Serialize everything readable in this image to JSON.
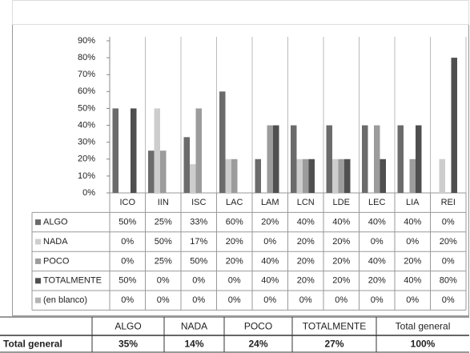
{
  "chart_data": {
    "type": "bar",
    "categories": [
      "ICO",
      "IIN",
      "ISC",
      "LAC",
      "LAM",
      "LCN",
      "LDE",
      "LEC",
      "LIA",
      "REI"
    ],
    "series": [
      {
        "name": "ALGO",
        "color": "#6b6b6b",
        "values": [
          50,
          25,
          33,
          60,
          20,
          40,
          40,
          40,
          40,
          0
        ],
        "value_labels": [
          "50%",
          "25%",
          "33%",
          "60%",
          "20%",
          "40%",
          "40%",
          "40%",
          "40%",
          "0%"
        ]
      },
      {
        "name": "NADA",
        "color": "#cdcdcd",
        "values": [
          0,
          50,
          17,
          20,
          0,
          20,
          20,
          0,
          0,
          20
        ],
        "value_labels": [
          "0%",
          "50%",
          "17%",
          "20%",
          "0%",
          "20%",
          "20%",
          "0%",
          "0%",
          "20%"
        ]
      },
      {
        "name": "POCO",
        "color": "#9c9c9c",
        "values": [
          0,
          25,
          50,
          20,
          40,
          20,
          20,
          40,
          20,
          0
        ],
        "value_labels": [
          "0%",
          "25%",
          "50%",
          "20%",
          "40%",
          "20%",
          "20%",
          "40%",
          "20%",
          "0%"
        ]
      },
      {
        "name": "TOTALMENTE",
        "color": "#4f4f4f",
        "values": [
          50,
          0,
          0,
          0,
          40,
          20,
          20,
          20,
          40,
          80
        ],
        "value_labels": [
          "50%",
          "0%",
          "0%",
          "0%",
          "40%",
          "20%",
          "20%",
          "20%",
          "40%",
          "80%"
        ]
      },
      {
        "name": "(en blanco)",
        "color": "#b4b4b4",
        "values": [
          0,
          0,
          0,
          0,
          0,
          0,
          0,
          0,
          0,
          0
        ],
        "value_labels": [
          "0%",
          "0%",
          "0%",
          "0%",
          "0%",
          "0%",
          "0%",
          "0%",
          "0%",
          "0%"
        ]
      }
    ],
    "ylim": [
      0,
      90
    ],
    "yticks": [
      {
        "value": 0,
        "label": "0%"
      },
      {
        "value": 10,
        "label": "10%"
      },
      {
        "value": 20,
        "label": "20%"
      },
      {
        "value": 30,
        "label": "30%"
      },
      {
        "value": 40,
        "label": "40%"
      },
      {
        "value": 50,
        "label": "50%"
      },
      {
        "value": 60,
        "label": "60%"
      },
      {
        "value": 70,
        "label": "70%"
      },
      {
        "value": 80,
        "label": "80%"
      },
      {
        "value": 90,
        "label": "90%"
      }
    ],
    "grid": false
  },
  "summary_table": {
    "header": [
      "ALGO",
      "NADA",
      "POCO",
      "TOTALMENTE",
      "Total general"
    ],
    "row_label": "Total general",
    "values": [
      "35%",
      "14%",
      "24%",
      "27%",
      "100%"
    ]
  }
}
